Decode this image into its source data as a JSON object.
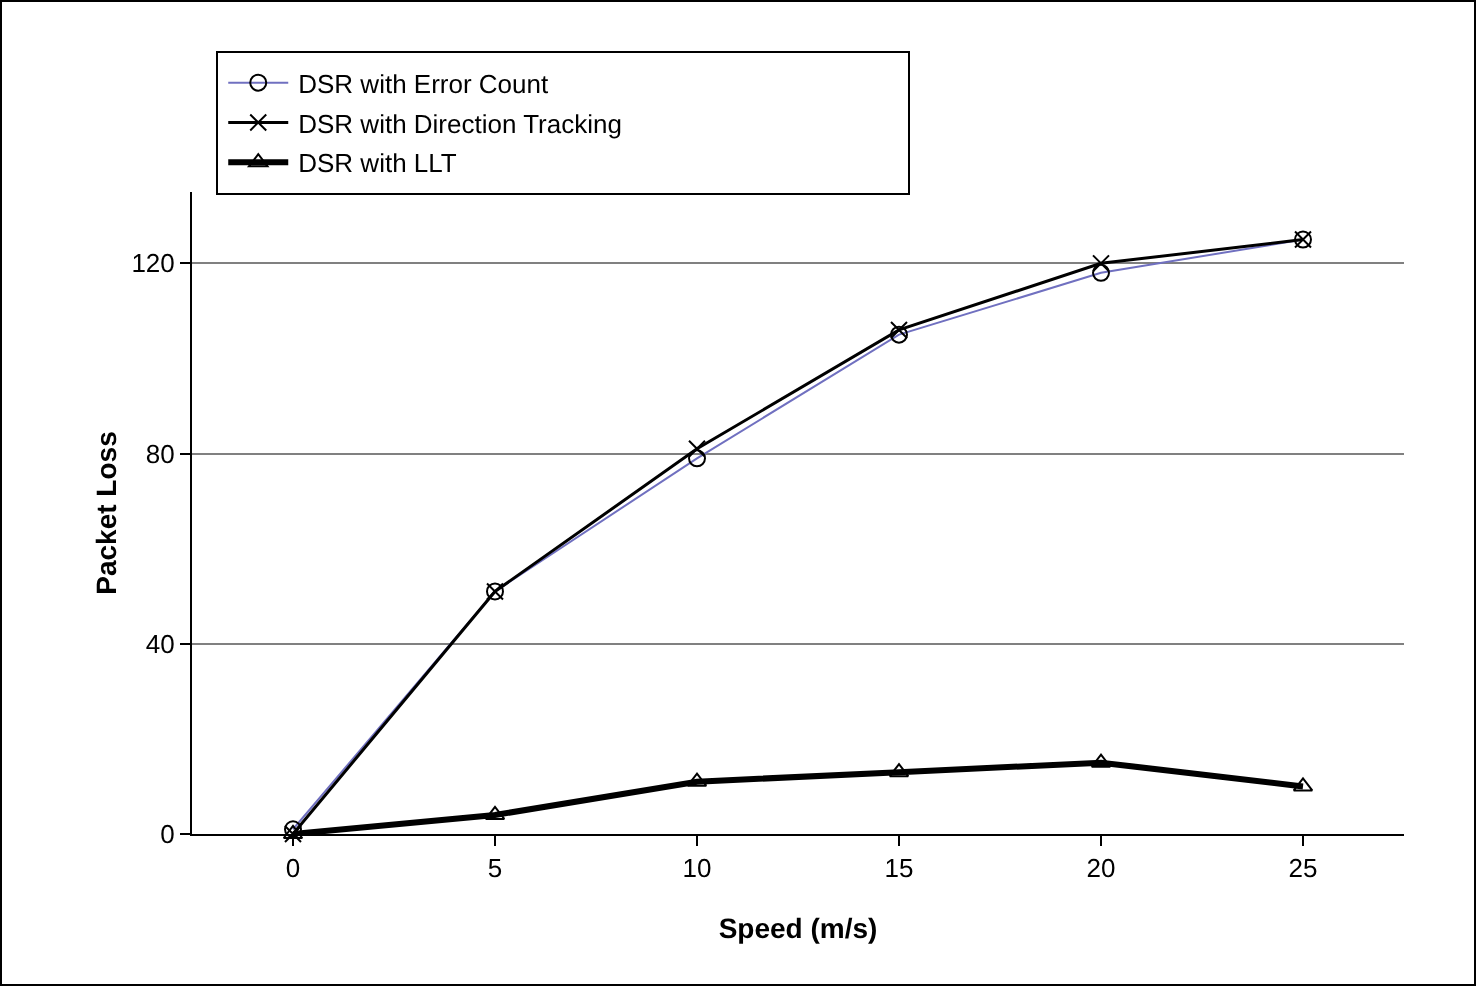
{
  "chart_data": {
    "type": "line",
    "xlabel": "Speed (m/s)",
    "ylabel": "Packet Loss",
    "categories": [
      "0",
      "5",
      "10",
      "15",
      "20",
      "25"
    ],
    "series": [
      {
        "name": "DSR with Error Count",
        "color": "#7070c0",
        "marker": "circle",
        "values": [
          1,
          51,
          79,
          105,
          118,
          125
        ]
      },
      {
        "name": "DSR with Direction Tracking",
        "color": "#000000",
        "marker": "cross",
        "values": [
          0,
          51,
          81,
          106,
          120,
          125
        ]
      },
      {
        "name": "DSR with LLT",
        "color": "#000000",
        "marker": "triangle",
        "values": [
          0,
          4,
          11,
          13,
          15,
          10
        ]
      }
    ],
    "ylim": [
      0,
      135
    ],
    "yticks": [
      0,
      40,
      80,
      120
    ],
    "grid": "y",
    "legend": "top",
    "line_style": "solid"
  }
}
